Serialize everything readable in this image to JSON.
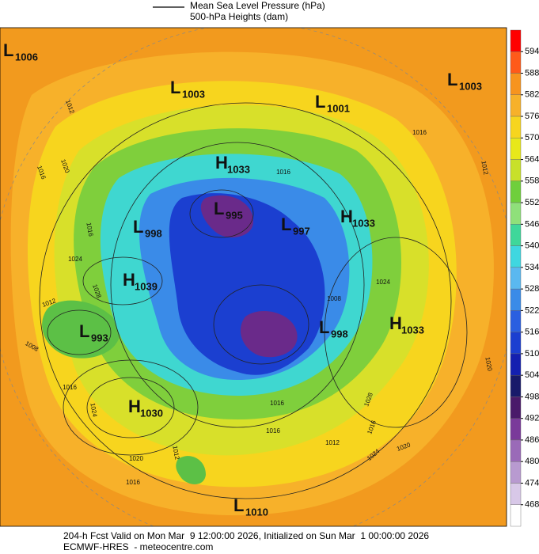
{
  "legend": [
    "Mean Sea Level Pressure (hPa)",
    "500-hPa Heights (dam)"
  ],
  "pressure_centers": [
    {
      "symbol": "L",
      "value": 1006
    },
    {
      "symbol": "L",
      "value": 1003
    },
    {
      "symbol": "L",
      "value": 1001
    },
    {
      "symbol": "L",
      "value": 1003
    },
    {
      "symbol": "H",
      "value": 1033
    },
    {
      "symbol": "L",
      "value": 995
    },
    {
      "symbol": "L",
      "value": 998
    },
    {
      "symbol": "L",
      "value": 997
    },
    {
      "symbol": "H",
      "value": 1033
    },
    {
      "symbol": "H",
      "value": 1039
    },
    {
      "symbol": "L",
      "value": 993
    },
    {
      "symbol": "L",
      "value": 998
    },
    {
      "symbol": "H",
      "value": 1033
    },
    {
      "symbol": "H",
      "value": 1030
    },
    {
      "symbol": "L",
      "value": 1010
    }
  ],
  "isobar_labels": [
    1012,
    1016,
    1020,
    1016,
    1016,
    1016,
    1024,
    1012,
    1028,
    1008,
    1016,
    1024,
    1012,
    1020,
    1016,
    1012,
    1024,
    1020,
    1016,
    1008,
    1028,
    1024,
    1020,
    1016,
    1016,
    1012
  ],
  "colorbar": {
    "ticks": [
      594,
      588,
      582,
      576,
      570,
      564,
      558,
      552,
      546,
      540,
      534,
      528,
      522,
      516,
      510,
      504,
      498,
      492,
      486,
      480,
      474,
      468
    ],
    "colors": [
      "#ff0000",
      "#ff5a1a",
      "#f7941e",
      "#f7b12a",
      "#f7d51e",
      "#e8e81a",
      "#c8e02a",
      "#6fcf3c",
      "#8fe07a",
      "#3fd79a",
      "#3fd7e0",
      "#5ab8f0",
      "#3a8be8",
      "#2a5fe0",
      "#1b3fd0",
      "#1420b0",
      "#181a6a",
      "#4a1a6a",
      "#7a3a9a",
      "#9a6ab8",
      "#b89ad0",
      "#d8c8e8",
      "#ffffff"
    ]
  },
  "footer": [
    "204-h Fcst Valid on Mon Mar  9 12:00:00 2026, Initialized on Sun Mar  1 00:00:00 2026",
    "ECMWF-HRES  - meteocentre.com"
  ]
}
